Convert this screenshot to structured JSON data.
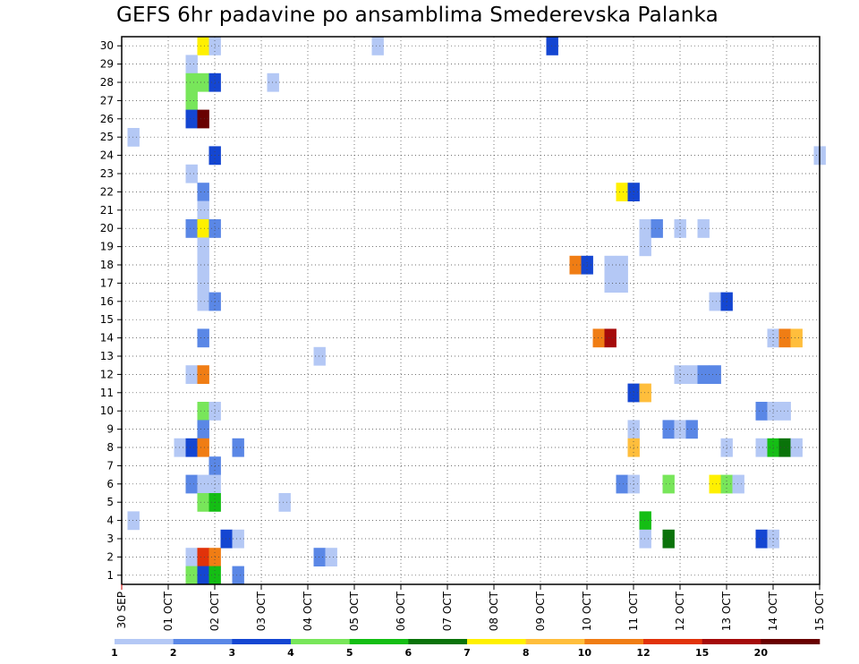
{
  "chart_data": {
    "type": "heatmap",
    "title": "GEFS 6hr padavine po ansamblima Smederevska Palanka",
    "x_tick_labels": [
      "30 SEP",
      "01 OCT",
      "02 OCT",
      "03 OCT",
      "04 OCT",
      "05 OCT",
      "06 OCT",
      "07 OCT",
      "08 OCT",
      "09 OCT",
      "10 OCT",
      "11 OCT",
      "12 OCT",
      "13 OCT",
      "14 OCT",
      "15 OCT"
    ],
    "y_tick_labels": [
      "1",
      "2",
      "3",
      "4",
      "5",
      "6",
      "7",
      "8",
      "9",
      "10",
      "11",
      "12",
      "13",
      "14",
      "15",
      "16",
      "17",
      "18",
      "19",
      "20",
      "21",
      "22",
      "23",
      "24",
      "25",
      "26",
      "27",
      "28",
      "29",
      "30"
    ],
    "x_unit": "6-hour step from 30 SEP 00Z",
    "ylim": [
      0.5,
      30.5
    ],
    "grid": true,
    "legend_position": "bottom",
    "colorbar": {
      "labels": [
        "1",
        "2",
        "3",
        "4",
        "5",
        "6",
        "7",
        "8",
        "10",
        "12",
        "15",
        "20"
      ],
      "colors": [
        "#b4c8f5",
        "#5a87e6",
        "#1446d2",
        "#78e65a",
        "#14be14",
        "#0a730a",
        "#fff000",
        "#ffbe3c",
        "#f07d14",
        "#e1320a",
        "#a50a0a",
        "#690000"
      ]
    },
    "cells": [
      {
        "member": 30,
        "step": 6,
        "level": 7
      },
      {
        "member": 30,
        "step": 7,
        "level": 1
      },
      {
        "member": 30,
        "step": 21,
        "level": 1
      },
      {
        "member": 30,
        "step": 36,
        "level": 3
      },
      {
        "member": 29,
        "step": 5,
        "level": 1
      },
      {
        "member": 28,
        "step": 5,
        "level": 4
      },
      {
        "member": 28,
        "step": 6,
        "level": 4
      },
      {
        "member": 28,
        "step": 7,
        "level": 3
      },
      {
        "member": 28,
        "step": 12,
        "level": 1
      },
      {
        "member": 27,
        "step": 5,
        "level": 4
      },
      {
        "member": 26,
        "step": 5,
        "level": 3
      },
      {
        "member": 26,
        "step": 6,
        "level": 12
      },
      {
        "member": 25,
        "step": 0,
        "level": 1
      },
      {
        "member": 24,
        "step": 7,
        "level": 3
      },
      {
        "member": 24,
        "step": 59,
        "level": 1
      },
      {
        "member": 23,
        "step": 5,
        "level": 1
      },
      {
        "member": 22,
        "step": 6,
        "level": 2
      },
      {
        "member": 22,
        "step": 42,
        "level": 7
      },
      {
        "member": 22,
        "step": 43,
        "level": 3
      },
      {
        "member": 21,
        "step": 6,
        "level": 1
      },
      {
        "member": 20,
        "step": 5,
        "level": 2
      },
      {
        "member": 20,
        "step": 6,
        "level": 7
      },
      {
        "member": 20,
        "step": 7,
        "level": 2
      },
      {
        "member": 20,
        "step": 44,
        "level": 1
      },
      {
        "member": 20,
        "step": 45,
        "level": 2
      },
      {
        "member": 20,
        "step": 47,
        "level": 1
      },
      {
        "member": 20,
        "step": 49,
        "level": 1
      },
      {
        "member": 19,
        "step": 6,
        "level": 1
      },
      {
        "member": 19,
        "step": 44,
        "level": 1
      },
      {
        "member": 18,
        "step": 6,
        "level": 1
      },
      {
        "member": 18,
        "step": 38,
        "level": 9
      },
      {
        "member": 18,
        "step": 39,
        "level": 3
      },
      {
        "member": 18,
        "step": 41,
        "level": 1
      },
      {
        "member": 18,
        "step": 42,
        "level": 1
      },
      {
        "member": 17,
        "step": 6,
        "level": 1
      },
      {
        "member": 17,
        "step": 41,
        "level": 1
      },
      {
        "member": 17,
        "step": 42,
        "level": 1
      },
      {
        "member": 16,
        "step": 6,
        "level": 1
      },
      {
        "member": 16,
        "step": 7,
        "level": 2
      },
      {
        "member": 16,
        "step": 50,
        "level": 1
      },
      {
        "member": 16,
        "step": 51,
        "level": 3
      },
      {
        "member": 14,
        "step": 6,
        "level": 2
      },
      {
        "member": 14,
        "step": 40,
        "level": 9
      },
      {
        "member": 14,
        "step": 41,
        "level": 11
      },
      {
        "member": 14,
        "step": 55,
        "level": 1
      },
      {
        "member": 14,
        "step": 56,
        "level": 9
      },
      {
        "member": 14,
        "step": 57,
        "level": 8
      },
      {
        "member": 13,
        "step": 16,
        "level": 1
      },
      {
        "member": 12,
        "step": 5,
        "level": 1
      },
      {
        "member": 12,
        "step": 6,
        "level": 9
      },
      {
        "member": 12,
        "step": 47,
        "level": 1
      },
      {
        "member": 12,
        "step": 48,
        "level": 1
      },
      {
        "member": 12,
        "step": 49,
        "level": 2
      },
      {
        "member": 12,
        "step": 50,
        "level": 2
      },
      {
        "member": 11,
        "step": 43,
        "level": 3
      },
      {
        "member": 11,
        "step": 44,
        "level": 8
      },
      {
        "member": 10,
        "step": 6,
        "level": 4
      },
      {
        "member": 10,
        "step": 7,
        "level": 1
      },
      {
        "member": 10,
        "step": 54,
        "level": 2
      },
      {
        "member": 10,
        "step": 55,
        "level": 1
      },
      {
        "member": 10,
        "step": 56,
        "level": 1
      },
      {
        "member": 9,
        "step": 6,
        "level": 2
      },
      {
        "member": 9,
        "step": 43,
        "level": 1
      },
      {
        "member": 9,
        "step": 46,
        "level": 2
      },
      {
        "member": 9,
        "step": 47,
        "level": 1
      },
      {
        "member": 9,
        "step": 48,
        "level": 2
      },
      {
        "member": 8,
        "step": 4,
        "level": 1
      },
      {
        "member": 8,
        "step": 5,
        "level": 3
      },
      {
        "member": 8,
        "step": 6,
        "level": 9
      },
      {
        "member": 8,
        "step": 9,
        "level": 2
      },
      {
        "member": 8,
        "step": 43,
        "level": 8
      },
      {
        "member": 8,
        "step": 51,
        "level": 1
      },
      {
        "member": 8,
        "step": 54,
        "level": 1
      },
      {
        "member": 8,
        "step": 55,
        "level": 5
      },
      {
        "member": 8,
        "step": 56,
        "level": 6
      },
      {
        "member": 8,
        "step": 57,
        "level": 1
      },
      {
        "member": 7,
        "step": 7,
        "level": 2
      },
      {
        "member": 6,
        "step": 5,
        "level": 2
      },
      {
        "member": 6,
        "step": 6,
        "level": 1
      },
      {
        "member": 6,
        "step": 7,
        "level": 1
      },
      {
        "member": 6,
        "step": 42,
        "level": 2
      },
      {
        "member": 6,
        "step": 43,
        "level": 1
      },
      {
        "member": 6,
        "step": 46,
        "level": 4
      },
      {
        "member": 6,
        "step": 50,
        "level": 7
      },
      {
        "member": 6,
        "step": 51,
        "level": 4
      },
      {
        "member": 6,
        "step": 52,
        "level": 1
      },
      {
        "member": 5,
        "step": 6,
        "level": 4
      },
      {
        "member": 5,
        "step": 7,
        "level": 5
      },
      {
        "member": 5,
        "step": 13,
        "level": 1
      },
      {
        "member": 4,
        "step": 0,
        "level": 1
      },
      {
        "member": 4,
        "step": 44,
        "level": 5
      },
      {
        "member": 3,
        "step": 8,
        "level": 3
      },
      {
        "member": 3,
        "step": 9,
        "level": 1
      },
      {
        "member": 3,
        "step": 44,
        "level": 1
      },
      {
        "member": 3,
        "step": 46,
        "level": 6
      },
      {
        "member": 3,
        "step": 54,
        "level": 3
      },
      {
        "member": 3,
        "step": 55,
        "level": 1
      },
      {
        "member": 2,
        "step": 5,
        "level": 1
      },
      {
        "member": 2,
        "step": 6,
        "level": 10
      },
      {
        "member": 2,
        "step": 7,
        "level": 9
      },
      {
        "member": 2,
        "step": 16,
        "level": 2
      },
      {
        "member": 2,
        "step": 17,
        "level": 1
      },
      {
        "member": 1,
        "step": 5,
        "level": 4
      },
      {
        "member": 1,
        "step": 6,
        "level": 3
      },
      {
        "member": 1,
        "step": 7,
        "level": 5
      },
      {
        "member": 1,
        "step": 9,
        "level": 2
      }
    ]
  }
}
